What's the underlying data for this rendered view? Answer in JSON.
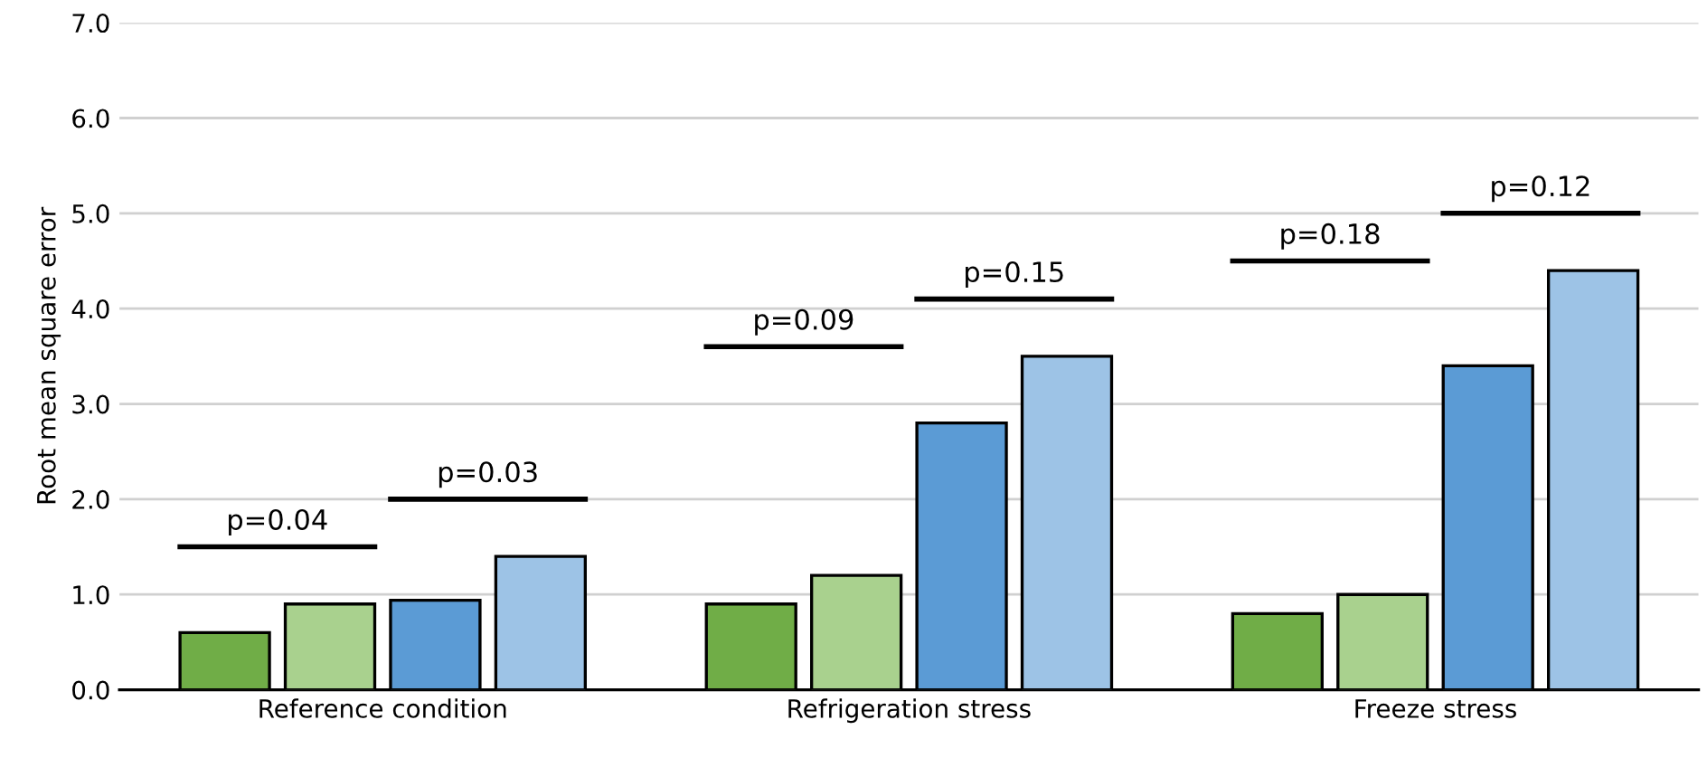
{
  "chart_data": {
    "type": "bar",
    "ylabel": "Root mean square error",
    "categories": [
      "Reference condition",
      "Refrigeration stress",
      "Freeze stress"
    ],
    "series": [
      {
        "color": "#70ad47",
        "values": [
          0.6,
          0.9,
          0.8
        ]
      },
      {
        "color": "#a9d18e",
        "values": [
          0.9,
          1.2,
          1.0
        ]
      },
      {
        "color": "#5b9bd5",
        "values": [
          0.94,
          2.8,
          3.4
        ]
      },
      {
        "color": "#9dc3e6",
        "values": [
          1.4,
          3.5,
          4.4
        ]
      }
    ],
    "ylim": [
      0,
      7
    ],
    "yticks": [
      {
        "value": 0,
        "label": "0.0"
      },
      {
        "value": 1,
        "label": "1.0"
      },
      {
        "value": 2,
        "label": "2.0"
      },
      {
        "value": 3,
        "label": "3.0"
      },
      {
        "value": 4,
        "label": "4.0"
      },
      {
        "value": 5,
        "label": "5.0"
      },
      {
        "value": 6,
        "label": "6.0"
      },
      {
        "value": 7,
        "label": "7.0"
      }
    ],
    "grid": "y",
    "legend": false,
    "annotations": [
      "p=0.04",
      "p=0.03",
      "p=0.09",
      "p=0.15",
      "p=0.18",
      "p=0.12"
    ]
  }
}
